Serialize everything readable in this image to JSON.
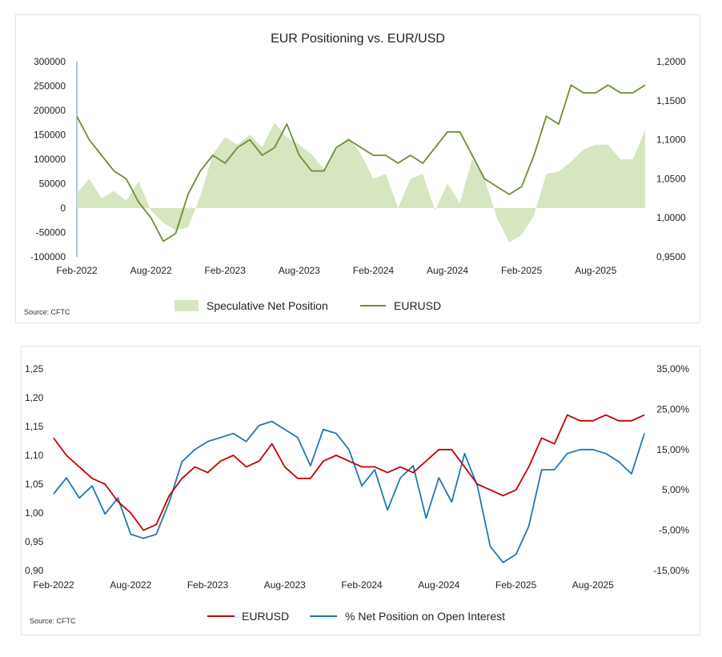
{
  "chart_data": [
    {
      "type": "area",
      "title": "EUR Positioning vs. EUR/USD",
      "source": "Source: CFTC",
      "x_ticks": [
        "Feb-2022",
        "Aug-2022",
        "Feb-2023",
        "Aug-2023",
        "Feb-2024",
        "Aug-2024",
        "Feb-2025",
        "Aug-2025"
      ],
      "y_left": {
        "min": -100000,
        "max": 300000,
        "tick_labels": [
          "-100000",
          "-50000",
          "0",
          "50000",
          "100000",
          "150000",
          "200000",
          "250000",
          "300000"
        ]
      },
      "y_right": {
        "min": 0.95,
        "max": 1.2,
        "tick_labels": [
          "0,9500",
          "1,0000",
          "1,0500",
          "1,1000",
          "1,1500",
          "1,2000"
        ]
      },
      "colors": {
        "area": "#d5e6c0",
        "line": "#6b8e35"
      },
      "series": [
        {
          "name": "Speculative Net Position",
          "type": "area",
          "axis": "left",
          "x": [
            "2022-02",
            "2022-03",
            "2022-04",
            "2022-05",
            "2022-06",
            "2022-07",
            "2022-08",
            "2022-09",
            "2022-10",
            "2022-11",
            "2022-12",
            "2023-01",
            "2023-02",
            "2023-03",
            "2023-04",
            "2023-05",
            "2023-06",
            "2023-07",
            "2023-08",
            "2023-09",
            "2023-10",
            "2023-11",
            "2023-12",
            "2024-01",
            "2024-02",
            "2024-03",
            "2024-04",
            "2024-05",
            "2024-06",
            "2024-07",
            "2024-08",
            "2024-09",
            "2024-10",
            "2024-11",
            "2024-12",
            "2025-01",
            "2025-02",
            "2025-03",
            "2025-04",
            "2025-05",
            "2025-06",
            "2025-07",
            "2025-08",
            "2025-09",
            "2025-10",
            "2025-11",
            "2025-12"
          ],
          "values": [
            30000,
            60000,
            20000,
            35000,
            15000,
            55000,
            -5000,
            -30000,
            -45000,
            -40000,
            25000,
            110000,
            145000,
            130000,
            150000,
            125000,
            175000,
            145000,
            130000,
            110000,
            80000,
            120000,
            145000,
            110000,
            60000,
            70000,
            0,
            60000,
            70000,
            -5000,
            50000,
            10000,
            100000,
            60000,
            -20000,
            -70000,
            -55000,
            -15000,
            70000,
            75000,
            95000,
            120000,
            130000,
            130000,
            100000,
            100000,
            160000
          ]
        },
        {
          "name": "EURUSD",
          "type": "line",
          "axis": "right",
          "x": [
            "2022-02",
            "2022-03",
            "2022-04",
            "2022-05",
            "2022-06",
            "2022-07",
            "2022-08",
            "2022-09",
            "2022-10",
            "2022-11",
            "2022-12",
            "2023-01",
            "2023-02",
            "2023-03",
            "2023-04",
            "2023-05",
            "2023-06",
            "2023-07",
            "2023-08",
            "2023-09",
            "2023-10",
            "2023-11",
            "2023-12",
            "2024-01",
            "2024-02",
            "2024-03",
            "2024-04",
            "2024-05",
            "2024-06",
            "2024-07",
            "2024-08",
            "2024-09",
            "2024-10",
            "2024-11",
            "2024-12",
            "2025-01",
            "2025-02",
            "2025-03",
            "2025-04",
            "2025-05",
            "2025-06",
            "2025-07",
            "2025-08",
            "2025-09",
            "2025-10",
            "2025-11",
            "2025-12"
          ],
          "values": [
            1.13,
            1.1,
            1.08,
            1.06,
            1.05,
            1.02,
            1.0,
            0.97,
            0.98,
            1.03,
            1.06,
            1.08,
            1.07,
            1.09,
            1.1,
            1.08,
            1.09,
            1.12,
            1.08,
            1.06,
            1.06,
            1.09,
            1.1,
            1.09,
            1.08,
            1.08,
            1.07,
            1.08,
            1.07,
            1.09,
            1.11,
            1.11,
            1.08,
            1.05,
            1.04,
            1.03,
            1.04,
            1.08,
            1.13,
            1.12,
            1.17,
            1.16,
            1.16,
            1.17,
            1.16,
            1.16,
            1.17
          ]
        }
      ]
    },
    {
      "type": "line",
      "source": "Source: CFTC",
      "x_ticks": [
        "Feb-2022",
        "Aug-2022",
        "Feb-2023",
        "Aug-2023",
        "Feb-2024",
        "Aug-2024",
        "Feb-2025",
        "Aug-2025"
      ],
      "y_left": {
        "min": 0.9,
        "max": 1.25,
        "tick_labels": [
          "0,90",
          "0,95",
          "1,00",
          "1,05",
          "1,10",
          "1,15",
          "1,20",
          "1,25"
        ]
      },
      "y_right": {
        "min": -15,
        "max": 35,
        "tick_labels": [
          "-15,00%",
          "-5,00%",
          "5,00%",
          "15,00%",
          "25,00%",
          "35,00%"
        ]
      },
      "colors": {
        "eurusd": "#c00000",
        "net": "#1f77b4"
      },
      "series": [
        {
          "name": "EURUSD",
          "axis": "left",
          "x": [
            "2022-02",
            "2022-03",
            "2022-04",
            "2022-05",
            "2022-06",
            "2022-07",
            "2022-08",
            "2022-09",
            "2022-10",
            "2022-11",
            "2022-12",
            "2023-01",
            "2023-02",
            "2023-03",
            "2023-04",
            "2023-05",
            "2023-06",
            "2023-07",
            "2023-08",
            "2023-09",
            "2023-10",
            "2023-11",
            "2023-12",
            "2024-01",
            "2024-02",
            "2024-03",
            "2024-04",
            "2024-05",
            "2024-06",
            "2024-07",
            "2024-08",
            "2024-09",
            "2024-10",
            "2024-11",
            "2024-12",
            "2025-01",
            "2025-02",
            "2025-03",
            "2025-04",
            "2025-05",
            "2025-06",
            "2025-07",
            "2025-08",
            "2025-09",
            "2025-10",
            "2025-11",
            "2025-12"
          ],
          "values": [
            1.13,
            1.1,
            1.08,
            1.06,
            1.05,
            1.02,
            1.0,
            0.97,
            0.98,
            1.03,
            1.06,
            1.08,
            1.07,
            1.09,
            1.1,
            1.08,
            1.09,
            1.12,
            1.08,
            1.06,
            1.06,
            1.09,
            1.1,
            1.09,
            1.08,
            1.08,
            1.07,
            1.08,
            1.07,
            1.09,
            1.11,
            1.11,
            1.08,
            1.05,
            1.04,
            1.03,
            1.04,
            1.08,
            1.13,
            1.12,
            1.17,
            1.16,
            1.16,
            1.17,
            1.16,
            1.16,
            1.17
          ]
        },
        {
          "name": "% Net Position on Open Interest",
          "axis": "right",
          "x": [
            "2022-02",
            "2022-03",
            "2022-04",
            "2022-05",
            "2022-06",
            "2022-07",
            "2022-08",
            "2022-09",
            "2022-10",
            "2022-11",
            "2022-12",
            "2023-01",
            "2023-02",
            "2023-03",
            "2023-04",
            "2023-05",
            "2023-06",
            "2023-07",
            "2023-08",
            "2023-09",
            "2023-10",
            "2023-11",
            "2023-12",
            "2024-01",
            "2024-02",
            "2024-03",
            "2024-04",
            "2024-05",
            "2024-06",
            "2024-07",
            "2024-08",
            "2024-09",
            "2024-10",
            "2024-11",
            "2024-12",
            "2025-01",
            "2025-02",
            "2025-03",
            "2025-04",
            "2025-05",
            "2025-06",
            "2025-07",
            "2025-08",
            "2025-09",
            "2025-10",
            "2025-11",
            "2025-12"
          ],
          "values": [
            4,
            8,
            3,
            6,
            -1,
            3,
            -6,
            -7,
            -6,
            2,
            12,
            15,
            17,
            18,
            19,
            17,
            21,
            22,
            20,
            18,
            11,
            20,
            19,
            15,
            6,
            10,
            0,
            8,
            11,
            -2,
            8,
            2,
            14,
            6,
            -9,
            -13,
            -11,
            -4,
            10,
            10,
            14,
            15,
            15,
            14,
            12,
            9,
            19
          ]
        }
      ]
    }
  ]
}
